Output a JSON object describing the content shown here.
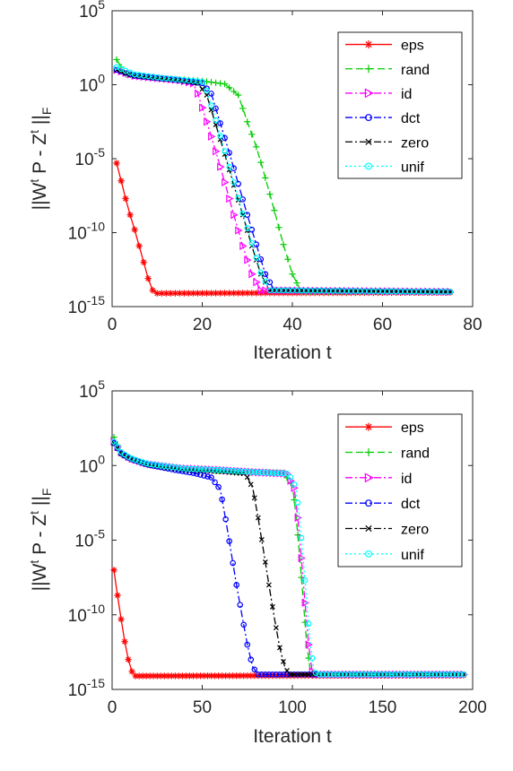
{
  "colors": {
    "eps": "#ff0000",
    "rand": "#00cc00",
    "id": "#ff00ff",
    "dct": "#0000ff",
    "zero": "#000000",
    "unif": "#00ffff"
  },
  "chart_data": [
    {
      "type": "line",
      "xlabel": "Iteration t",
      "ylabel_parts": [
        "||W",
        "t",
        " P - Z",
        "t",
        " ||",
        "F"
      ],
      "xlim": [
        0,
        80
      ],
      "xticks": [
        "0",
        "20",
        "40",
        "60",
        "80"
      ],
      "yscale": "log",
      "ylim_exp": [
        -15,
        5
      ],
      "yticks": [
        {
          "base": "10",
          "exp": "5"
        },
        {
          "base": "10",
          "exp": "0"
        },
        {
          "base": "10",
          "exp": "-5"
        },
        {
          "base": "10",
          "exp": "-10"
        },
        {
          "base": "10",
          "exp": "-15"
        }
      ],
      "legend": "top-right",
      "series": [
        {
          "name": "eps",
          "color": "eps",
          "marker": "star",
          "dash": "solid",
          "points": [
            [
              1,
              -5.3
            ],
            [
              2,
              -6.5
            ],
            [
              3,
              -7.7
            ],
            [
              4,
              -8.8
            ],
            [
              5,
              -9.8
            ],
            [
              6,
              -10.9
            ],
            [
              7,
              -12
            ],
            [
              8,
              -13.1
            ],
            [
              9,
              -13.9
            ],
            [
              10,
              -14.1
            ],
            [
              11,
              -14.1
            ],
            [
              75,
              -14.05
            ]
          ]
        },
        {
          "name": "rand",
          "color": "rand",
          "marker": "plus",
          "dash": "dash",
          "points": [
            [
              1,
              1.7
            ],
            [
              3,
              0.7
            ],
            [
              10,
              0.45
            ],
            [
              20,
              0.25
            ],
            [
              25,
              0.05
            ],
            [
              28,
              -0.7
            ],
            [
              30,
              -2.5
            ],
            [
              32,
              -4.2
            ],
            [
              34,
              -6.3
            ],
            [
              36,
              -8.5
            ],
            [
              38,
              -10.8
            ],
            [
              40,
              -12.8
            ],
            [
              42,
              -14
            ],
            [
              75,
              -14
            ]
          ]
        },
        {
          "name": "id",
          "color": "id",
          "marker": "triangle",
          "dash": "dashdot",
          "points": [
            [
              1,
              1.0
            ],
            [
              5,
              0.6
            ],
            [
              10,
              0.45
            ],
            [
              15,
              0.3
            ],
            [
              18,
              0.1
            ],
            [
              19,
              -0.6
            ],
            [
              21,
              -2.5
            ],
            [
              23,
              -4.5
            ],
            [
              25,
              -6.6
            ],
            [
              27,
              -8.8
            ],
            [
              29,
              -10.9
            ],
            [
              31,
              -12.8
            ],
            [
              33,
              -13.9
            ],
            [
              75,
              -14
            ]
          ]
        },
        {
          "name": "dct",
          "color": "dct",
          "marker": "circle",
          "dash": "dashdot",
          "points": [
            [
              1,
              1.0
            ],
            [
              5,
              0.6
            ],
            [
              10,
              0.45
            ],
            [
              15,
              0.3
            ],
            [
              20,
              0.1
            ],
            [
              22,
              -0.6
            ],
            [
              24,
              -2.6
            ],
            [
              26,
              -4.6
            ],
            [
              28,
              -6.7
            ],
            [
              30,
              -8.8
            ],
            [
              32,
              -10.8
            ],
            [
              34,
              -12.8
            ],
            [
              36,
              -13.9
            ],
            [
              75,
              -14
            ]
          ]
        },
        {
          "name": "zero",
          "color": "zero",
          "marker": "x",
          "dash": "dashdot",
          "points": [
            [
              1,
              1.0
            ],
            [
              5,
              0.6
            ],
            [
              10,
              0.45
            ],
            [
              15,
              0.3
            ],
            [
              19,
              0.1
            ],
            [
              21,
              -0.7
            ],
            [
              23,
              -2.7
            ],
            [
              25,
              -4.7
            ],
            [
              27,
              -6.8
            ],
            [
              29,
              -8.8
            ],
            [
              31,
              -10.9
            ],
            [
              33,
              -12.8
            ],
            [
              35,
              -13.9
            ],
            [
              75,
              -14
            ]
          ]
        },
        {
          "name": "unif",
          "color": "unif",
          "marker": "circle",
          "dash": "dot",
          "points": [
            [
              1,
              1.2
            ],
            [
              5,
              0.7
            ],
            [
              10,
              0.5
            ],
            [
              15,
              0.35
            ],
            [
              20,
              0.2
            ],
            [
              21,
              -0.4
            ],
            [
              23,
              -2.4
            ],
            [
              25,
              -4.5
            ],
            [
              27,
              -6.6
            ],
            [
              29,
              -8.7
            ],
            [
              31,
              -10.7
            ],
            [
              33,
              -12.7
            ],
            [
              35,
              -13.9
            ],
            [
              75,
              -14
            ]
          ]
        }
      ]
    },
    {
      "type": "line",
      "xlabel": "Iteration t",
      "ylabel_parts": [
        "||W",
        "t",
        " P - Z",
        "t",
        " ||",
        "F"
      ],
      "xlim": [
        0,
        200
      ],
      "xticks": [
        "0",
        "50",
        "100",
        "150",
        "200"
      ],
      "yscale": "log",
      "ylim_exp": [
        -15,
        5
      ],
      "yticks": [
        {
          "base": "10",
          "exp": "5"
        },
        {
          "base": "10",
          "exp": "0"
        },
        {
          "base": "10",
          "exp": "-5"
        },
        {
          "base": "10",
          "exp": "-10"
        },
        {
          "base": "10",
          "exp": "-15"
        }
      ],
      "legend": "top-right",
      "series": [
        {
          "name": "eps",
          "color": "eps",
          "marker": "star",
          "dash": "solid",
          "points": [
            [
              1,
              -7.0
            ],
            [
              3,
              -8.7
            ],
            [
              5,
              -10.3
            ],
            [
              7,
              -11.8
            ],
            [
              9,
              -13
            ],
            [
              11,
              -13.8
            ],
            [
              13,
              -14.1
            ],
            [
              195,
              -14.05
            ]
          ]
        },
        {
          "name": "rand",
          "color": "rand",
          "marker": "plus",
          "dash": "dash",
          "points": [
            [
              1,
              1.9
            ],
            [
              5,
              0.8
            ],
            [
              10,
              0.5
            ],
            [
              20,
              0.05
            ],
            [
              40,
              -0.25
            ],
            [
              60,
              -0.35
            ],
            [
              80,
              -0.45
            ],
            [
              95,
              -0.5
            ],
            [
              100,
              -1.3
            ],
            [
              102,
              -3.3
            ],
            [
              104,
              -6
            ],
            [
              106,
              -9
            ],
            [
              108,
              -12
            ],
            [
              110,
              -13.8
            ],
            [
              112,
              -14
            ],
            [
              195,
              -14
            ]
          ]
        },
        {
          "name": "id",
          "color": "id",
          "marker": "triangle",
          "dash": "dashdot",
          "points": [
            [
              1,
              1.6
            ],
            [
              5,
              0.9
            ],
            [
              10,
              0.5
            ],
            [
              20,
              0.1
            ],
            [
              40,
              -0.2
            ],
            [
              60,
              -0.3
            ],
            [
              80,
              -0.45
            ],
            [
              97,
              -0.55
            ],
            [
              101,
              -1.5
            ],
            [
              103,
              -3.5
            ],
            [
              105,
              -6.2
            ],
            [
              107,
              -9.2
            ],
            [
              109,
              -12
            ],
            [
              111,
              -13.8
            ],
            [
              113,
              -14
            ],
            [
              195,
              -14
            ]
          ]
        },
        {
          "name": "dct",
          "color": "dct",
          "marker": "circle",
          "dash": "dashdot",
          "points": [
            [
              1,
              1.5
            ],
            [
              5,
              0.8
            ],
            [
              10,
              0.45
            ],
            [
              20,
              0.05
            ],
            [
              35,
              -0.3
            ],
            [
              45,
              -0.5
            ],
            [
              55,
              -0.8
            ],
            [
              60,
              -1.6
            ],
            [
              63,
              -3.6
            ],
            [
              66,
              -5.8
            ],
            [
              69,
              -8
            ],
            [
              72,
              -10
            ],
            [
              75,
              -12
            ],
            [
              78,
              -13.5
            ],
            [
              81,
              -14
            ],
            [
              195,
              -14
            ]
          ]
        },
        {
          "name": "zero",
          "color": "zero",
          "marker": "x",
          "dash": "dashdot",
          "points": [
            [
              1,
              1.5
            ],
            [
              5,
              0.8
            ],
            [
              10,
              0.45
            ],
            [
              20,
              0.05
            ],
            [
              40,
              -0.25
            ],
            [
              60,
              -0.4
            ],
            [
              74,
              -0.55
            ],
            [
              78,
              -1.5
            ],
            [
              81,
              -3.5
            ],
            [
              84,
              -5.7
            ],
            [
              87,
              -8
            ],
            [
              90,
              -10.2
            ],
            [
              93,
              -12.2
            ],
            [
              96,
              -13.6
            ],
            [
              99,
              -14
            ],
            [
              195,
              -14
            ]
          ]
        },
        {
          "name": "unif",
          "color": "unif",
          "marker": "circle",
          "dash": "dot",
          "points": [
            [
              1,
              1.6
            ],
            [
              5,
              0.9
            ],
            [
              10,
              0.5
            ],
            [
              20,
              0.1
            ],
            [
              40,
              -0.2
            ],
            [
              60,
              -0.3
            ],
            [
              80,
              -0.45
            ],
            [
              98,
              -0.55
            ],
            [
              102,
              -1.5
            ],
            [
              104,
              -3.5
            ],
            [
              106,
              -6.2
            ],
            [
              108,
              -9.2
            ],
            [
              110,
              -12
            ],
            [
              112,
              -13.8
            ],
            [
              114,
              -14
            ],
            [
              195,
              -14
            ]
          ]
        }
      ]
    }
  ]
}
